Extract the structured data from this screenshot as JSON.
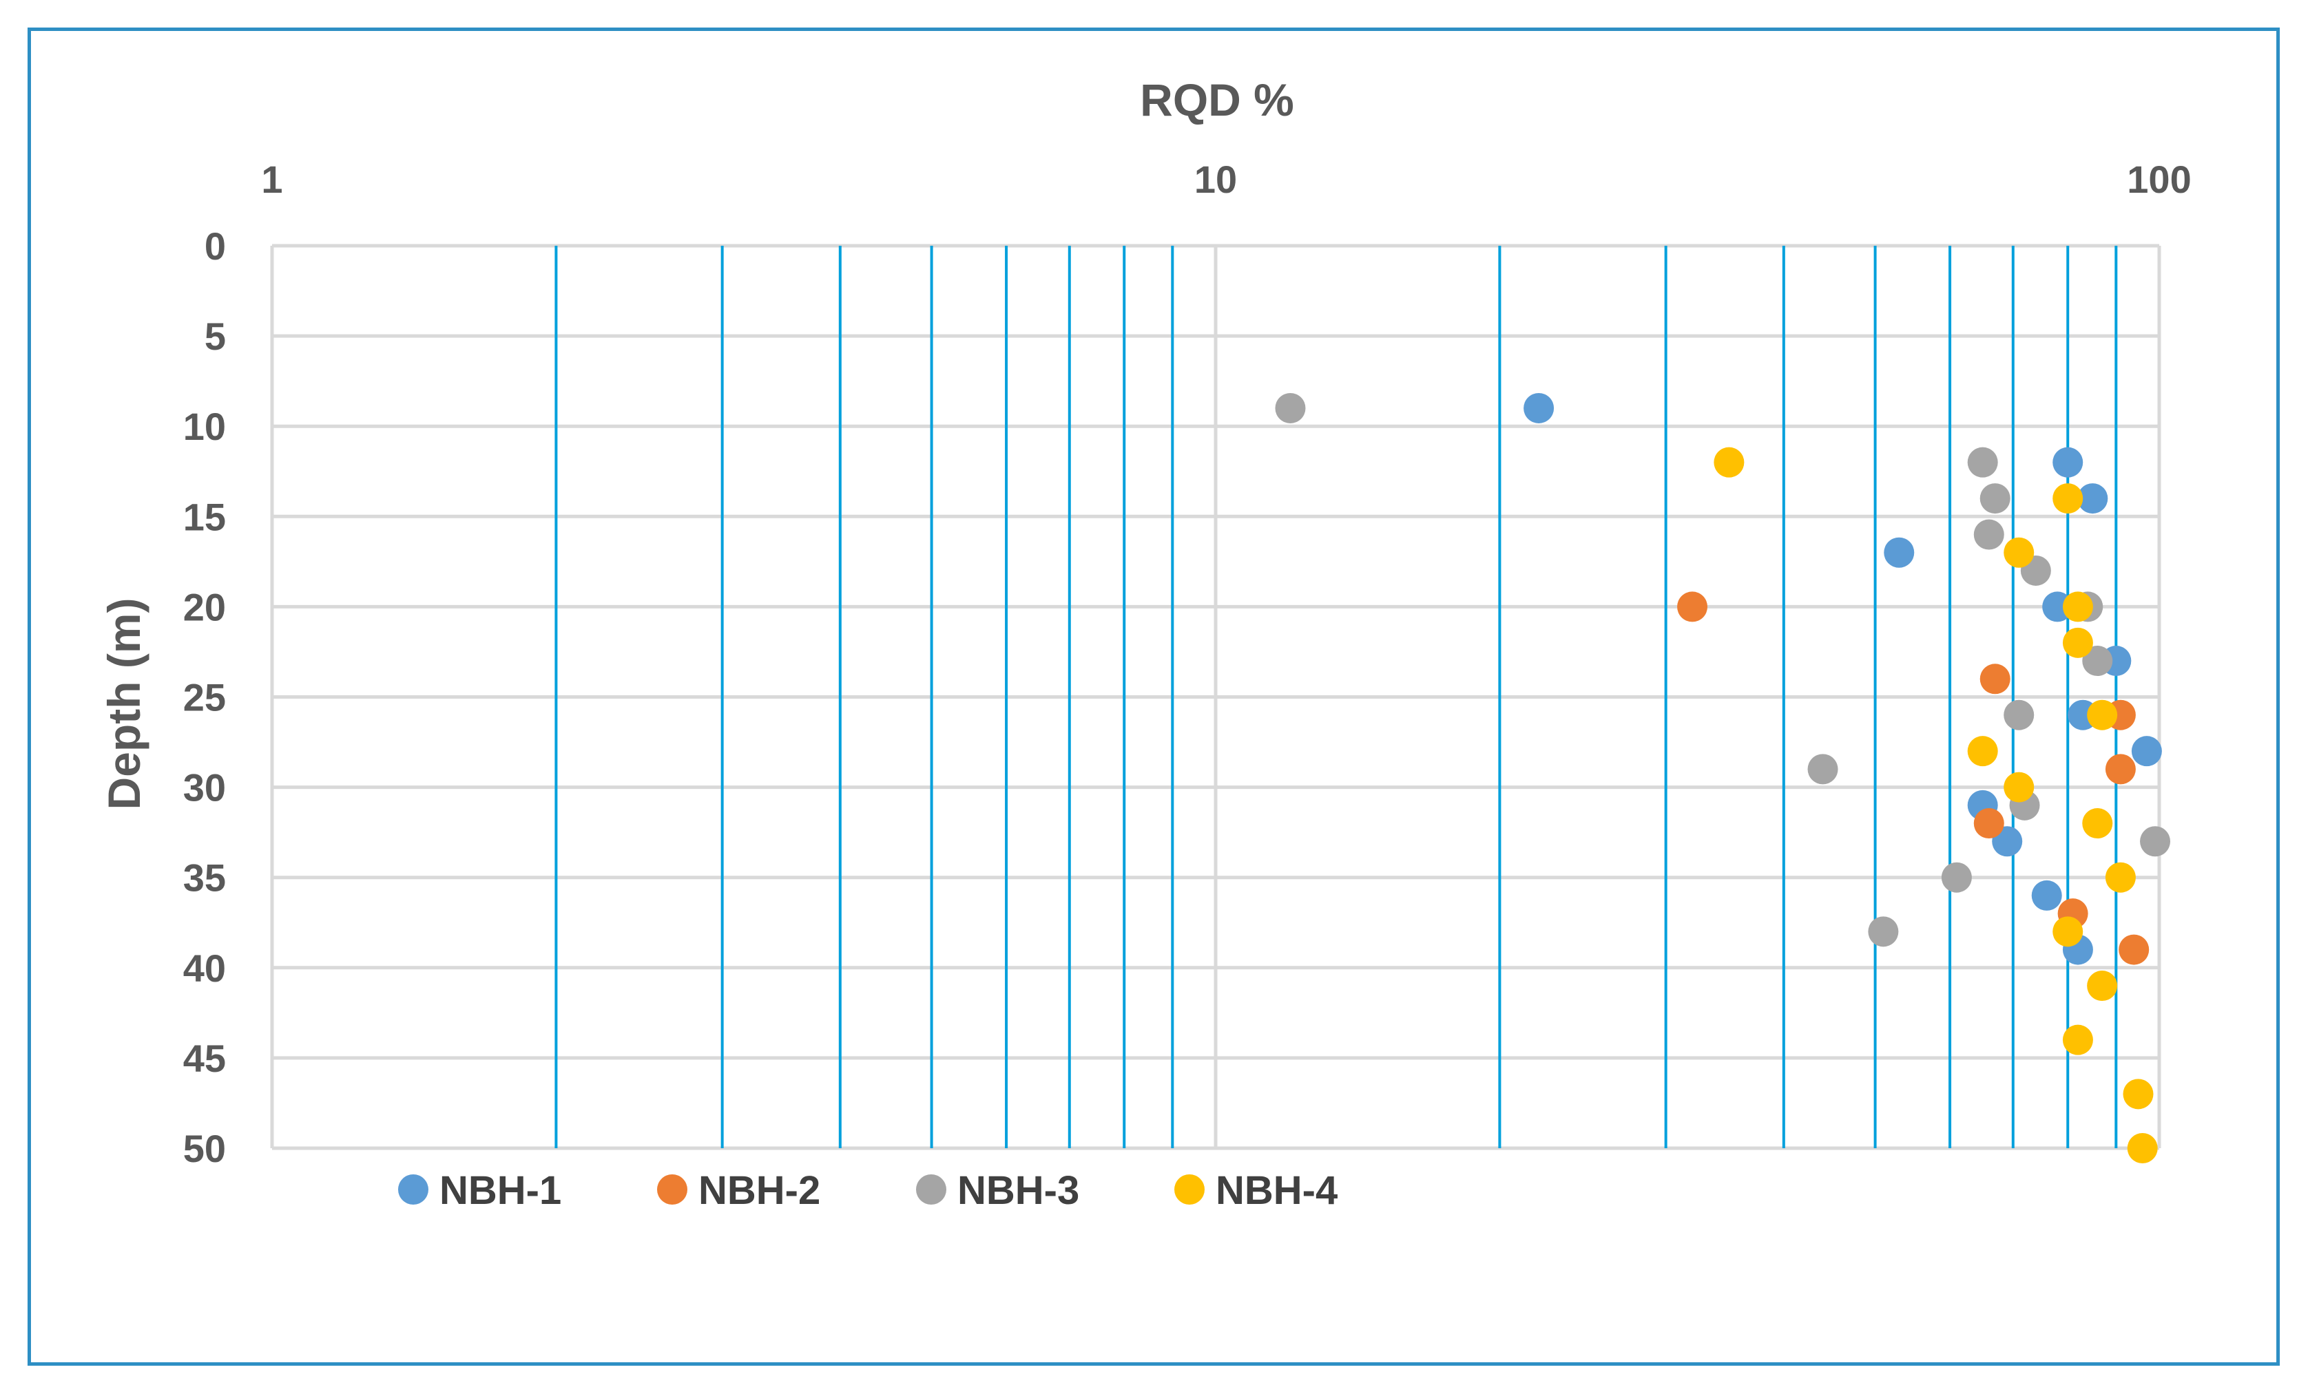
{
  "chart_data": {
    "type": "scatter",
    "title": "RQD %",
    "xlabel": "RQD %",
    "ylabel": "Depth (m)",
    "x_scale": "log",
    "xlim": [
      1,
      100
    ],
    "x_axis_position": "top",
    "x_ticks": [
      "1",
      "10",
      "100"
    ],
    "ylim": [
      0,
      50
    ],
    "y_reversed": true,
    "y_ticks": [
      "0",
      "5",
      "10",
      "15",
      "20",
      "25",
      "30",
      "35",
      "40",
      "45",
      "50"
    ],
    "grid": {
      "horizontal": true,
      "vertical_minor": true
    },
    "legend_position": "bottom-left",
    "series": [
      {
        "name": "NBH-1",
        "color": "#5b9bd5",
        "points": [
          [
            22,
            9
          ],
          [
            80,
            12
          ],
          [
            85,
            14
          ],
          [
            53,
            17
          ],
          [
            78,
            20
          ],
          [
            90,
            23
          ],
          [
            83,
            26
          ],
          [
            97,
            28
          ],
          [
            65,
            31
          ],
          [
            69,
            33
          ],
          [
            76,
            36
          ],
          [
            82,
            39
          ]
        ]
      },
      {
        "name": "NBH-2",
        "color": "#ed7d31",
        "points": [
          [
            32,
            20
          ],
          [
            67,
            24
          ],
          [
            91,
            26
          ],
          [
            91,
            29
          ],
          [
            66,
            32
          ],
          [
            81,
            37
          ],
          [
            94,
            39
          ]
        ]
      },
      {
        "name": "NBH-3",
        "color": "#a5a5a5",
        "points": [
          [
            12,
            9
          ],
          [
            65,
            12
          ],
          [
            67,
            14
          ],
          [
            66,
            16
          ],
          [
            74,
            18
          ],
          [
            84,
            20
          ],
          [
            86,
            23
          ],
          [
            71,
            26
          ],
          [
            44,
            29
          ],
          [
            72,
            31
          ],
          [
            99,
            33
          ],
          [
            61,
            35
          ],
          [
            51,
            38
          ]
        ]
      },
      {
        "name": "NBH-4",
        "color": "#ffc000",
        "points": [
          [
            35,
            12
          ],
          [
            80,
            14
          ],
          [
            71,
            17
          ],
          [
            82,
            20
          ],
          [
            82,
            22
          ],
          [
            87,
            26
          ],
          [
            65,
            28
          ],
          [
            71,
            30
          ],
          [
            86,
            32
          ],
          [
            91,
            35
          ],
          [
            80,
            38
          ],
          [
            87,
            41
          ],
          [
            82,
            44
          ],
          [
            95,
            47
          ],
          [
            96,
            50
          ]
        ]
      }
    ],
    "colors": {
      "vertical_grid": "#00a0dc",
      "horizontal_grid": "#d9d9d9",
      "frame_border": "#2e8fc4"
    }
  }
}
